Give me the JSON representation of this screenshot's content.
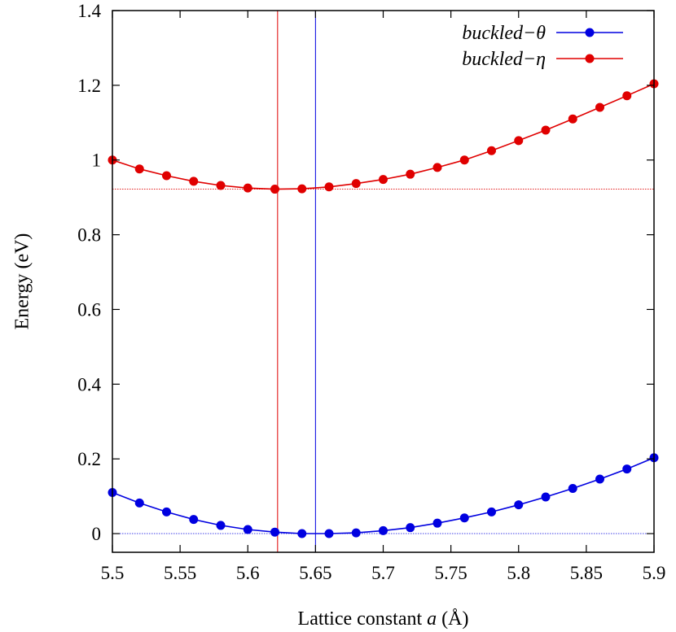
{
  "chart_data": {
    "type": "line",
    "xlabel": "Lattice constant ",
    "xlabel_var": "a",
    "xlabel_unit": " (Å)",
    "ylabel": "Energy (eV)",
    "xlim": [
      5.5,
      5.9
    ],
    "ylim": [
      -0.05,
      1.4
    ],
    "xticks": [
      "5.5",
      "5.55",
      "5.6",
      "5.65",
      "5.7",
      "5.75",
      "5.8",
      "5.85",
      "5.9"
    ],
    "yticks": [
      "0",
      "0.2",
      "0.4",
      "0.6",
      "0.8",
      "1",
      "1.2",
      "1.4"
    ],
    "grid": false,
    "legend_position": "top-right",
    "x": [
      5.5,
      5.52,
      5.54,
      5.56,
      5.58,
      5.6,
      5.62,
      5.64,
      5.66,
      5.68,
      5.7,
      5.72,
      5.74,
      5.76,
      5.78,
      5.8,
      5.82,
      5.84,
      5.86,
      5.88,
      5.9
    ],
    "series": [
      {
        "name": "buckled−θ",
        "color": "#0000e0",
        "values": [
          0.11,
          0.082,
          0.058,
          0.038,
          0.022,
          0.011,
          0.004,
          0.0,
          0.0,
          0.002,
          0.008,
          0.016,
          0.028,
          0.042,
          0.058,
          0.077,
          0.098,
          0.121,
          0.146,
          0.173,
          0.203
        ],
        "reference_x": 5.65,
        "reference_y": 0.0
      },
      {
        "name": "buckled−η",
        "color": "#e00000",
        "values": [
          1.0,
          0.976,
          0.958,
          0.943,
          0.932,
          0.925,
          0.922,
          0.923,
          0.928,
          0.937,
          0.948,
          0.962,
          0.98,
          1.0,
          1.025,
          1.052,
          1.08,
          1.11,
          1.141,
          1.172,
          1.204
        ],
        "reference_x": 5.622,
        "reference_y": 0.922
      }
    ]
  }
}
